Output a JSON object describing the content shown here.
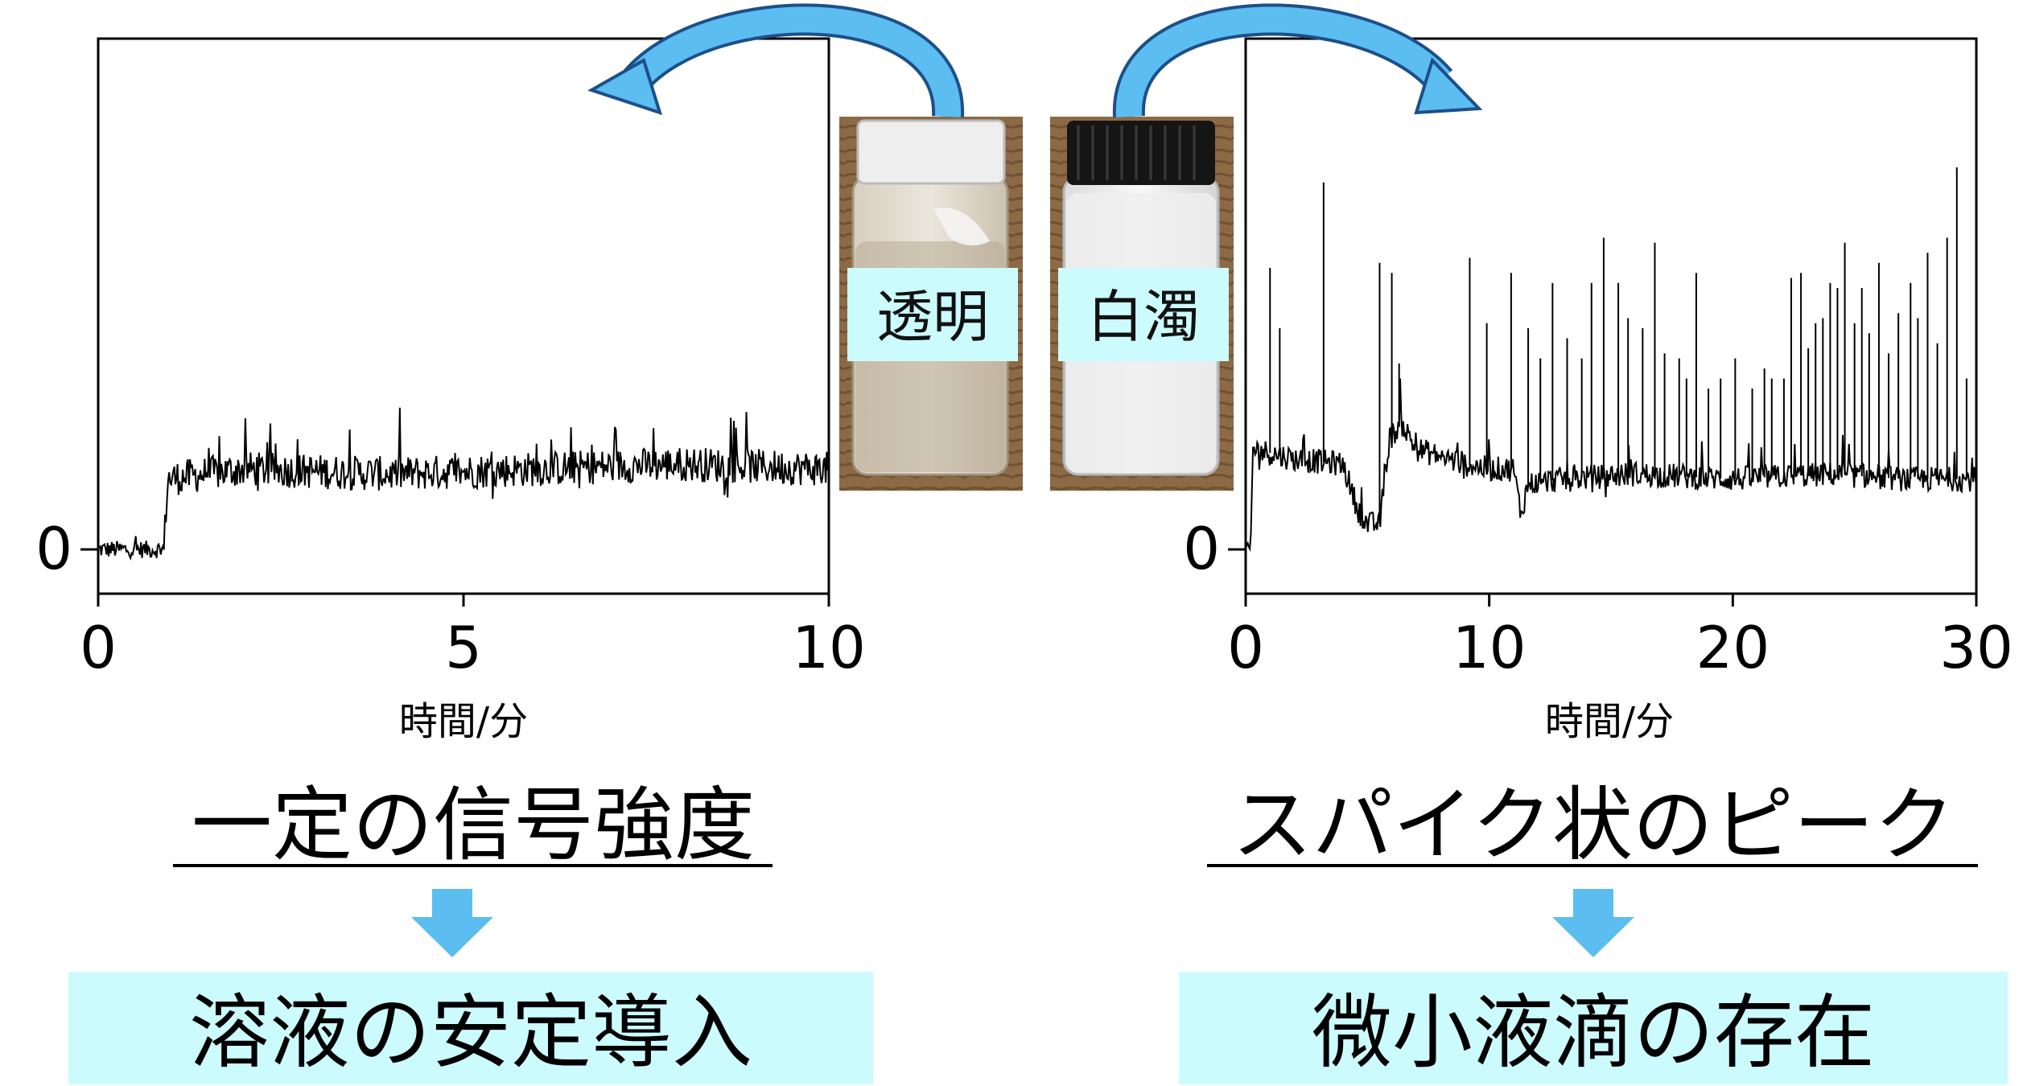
{
  "colors": {
    "arrow": "#5bbdf0",
    "arrow_stroke": "#1d4f8a",
    "result_box": "#ccfbfe",
    "label_box": "#ccfbfe",
    "trace": "#000000"
  },
  "vials": {
    "clear": {
      "label": "透明",
      "cap_color": "#eeeeee",
      "liquid_color": "#b8ab94"
    },
    "cloudy": {
      "label": "白濁",
      "cap_color": "#151515",
      "liquid_color": "#eeeeee"
    }
  },
  "left": {
    "heading": "一定の信号強度",
    "result": "溶液の安定導入"
  },
  "right": {
    "heading": "スパイク状のピーク",
    "result": "微小液滴の存在"
  },
  "chart_data": [
    {
      "type": "line",
      "panel": "clear solution",
      "xlabel": "時間/分",
      "ylabel": "",
      "xlim": [
        0,
        10
      ],
      "xticks": [
        0,
        5,
        10
      ],
      "ylim": [
        0,
        100
      ],
      "ytick_labels": [
        {
          "value": 0,
          "label": "0"
        }
      ],
      "grid": false,
      "series": [
        {
          "description": "constant signal with noise",
          "points": [
            [
              0,
              0
            ],
            [
              0.9,
              0
            ],
            [
              0.95,
              14
            ],
            [
              2,
              16
            ],
            [
              4,
              15
            ],
            [
              6,
              16
            ],
            [
              8,
              17
            ],
            [
              10,
              16
            ]
          ],
          "spikes": []
        }
      ]
    },
    {
      "type": "line",
      "panel": "cloudy solution",
      "xlabel": "時間/分",
      "ylabel": "",
      "xlim": [
        0,
        30
      ],
      "xticks": [
        0,
        10,
        20,
        30
      ],
      "ylim": [
        0,
        100
      ],
      "ytick_labels": [
        {
          "value": 0,
          "label": "0"
        }
      ],
      "grid": false,
      "series": [
        {
          "description": "spiky signal",
          "points": [
            [
              0,
              0
            ],
            [
              0.2,
              0
            ],
            [
              0.3,
              20
            ],
            [
              2,
              18
            ],
            [
              4,
              17
            ],
            [
              4.6,
              8
            ],
            [
              5.0,
              5
            ],
            [
              5.5,
              5
            ],
            [
              5.9,
              22
            ],
            [
              6.4,
              25
            ],
            [
              7,
              20
            ],
            [
              9,
              17
            ],
            [
              10,
              16
            ],
            [
              11,
              16
            ],
            [
              11.3,
              7
            ],
            [
              11.6,
              13
            ],
            [
              13,
              14
            ],
            [
              16,
              15
            ],
            [
              20,
              14
            ],
            [
              24,
              15
            ],
            [
              27,
              14
            ],
            [
              29.5,
              14
            ]
          ],
          "spikes": [
            [
              1.0,
              56
            ],
            [
              1.4,
              44
            ],
            [
              3.2,
              73
            ],
            [
              5.5,
              57
            ],
            [
              6.0,
              55
            ],
            [
              6.3,
              37
            ],
            [
              9.2,
              58
            ],
            [
              9.9,
              45
            ],
            [
              10.9,
              55
            ],
            [
              11.6,
              44
            ],
            [
              12.1,
              38
            ],
            [
              12.6,
              53
            ],
            [
              13.2,
              42
            ],
            [
              13.8,
              38
            ],
            [
              14.2,
              53
            ],
            [
              14.7,
              62
            ],
            [
              15.3,
              53
            ],
            [
              15.7,
              46
            ],
            [
              16.3,
              44
            ],
            [
              16.8,
              61
            ],
            [
              17.2,
              39
            ],
            [
              17.8,
              38
            ],
            [
              18.1,
              34
            ],
            [
              18.5,
              55
            ],
            [
              19.0,
              32
            ],
            [
              19.5,
              34
            ],
            [
              20.1,
              38
            ],
            [
              20.8,
              32
            ],
            [
              21.3,
              36
            ],
            [
              21.6,
              34
            ],
            [
              22.1,
              34
            ],
            [
              22.4,
              54
            ],
            [
              22.8,
              55
            ],
            [
              23.1,
              40
            ],
            [
              23.4,
              45
            ],
            [
              23.7,
              46
            ],
            [
              24.0,
              53
            ],
            [
              24.3,
              52
            ],
            [
              24.6,
              61
            ],
            [
              25.0,
              45
            ],
            [
              25.3,
              52
            ],
            [
              25.6,
              43
            ],
            [
              26.0,
              57
            ],
            [
              26.4,
              39
            ],
            [
              26.8,
              47
            ],
            [
              27.3,
              53
            ],
            [
              27.6,
              46
            ],
            [
              28.0,
              59
            ],
            [
              28.4,
              41
            ],
            [
              28.8,
              62
            ],
            [
              29.2,
              76
            ],
            [
              29.6,
              34
            ]
          ]
        }
      ]
    }
  ]
}
